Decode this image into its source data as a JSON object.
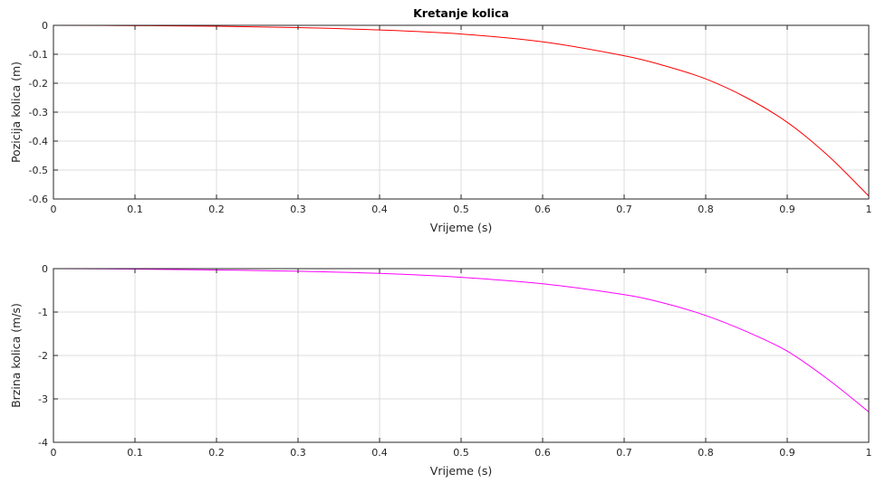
{
  "chart_data": [
    {
      "type": "line",
      "title": "Kretanje kolica",
      "xlabel": "Vrijeme (s)",
      "ylabel": "Pozicija kolica (m)",
      "xlim": [
        0,
        1
      ],
      "ylim": [
        -0.6,
        0
      ],
      "xticks": [
        "0",
        "0.1",
        "0.2",
        "0.3",
        "0.4",
        "0.5",
        "0.6",
        "0.7",
        "0.8",
        "0.9",
        "1"
      ],
      "yticks": [
        "0",
        "-0.1",
        "-0.2",
        "-0.3",
        "-0.4",
        "-0.5",
        "-0.6"
      ],
      "grid": true,
      "series": [
        {
          "color": "#ff0000",
          "x": [
            0,
            0.1,
            0.2,
            0.3,
            0.4,
            0.5,
            0.6,
            0.7,
            0.75,
            0.8,
            0.85,
            0.9,
            0.95,
            1.0
          ],
          "y": [
            0,
            -0.001,
            -0.003,
            -0.008,
            -0.016,
            -0.03,
            -0.057,
            -0.105,
            -0.14,
            -0.185,
            -0.25,
            -0.335,
            -0.45,
            -0.59
          ]
        }
      ]
    },
    {
      "type": "line",
      "title": "",
      "xlabel": "Vrijeme (s)",
      "ylabel": "Brzina kolica (m/s)",
      "xlim": [
        0,
        1
      ],
      "ylim": [
        -4,
        0
      ],
      "xticks": [
        "0",
        "0.1",
        "0.2",
        "0.3",
        "0.4",
        "0.5",
        "0.6",
        "0.7",
        "0.8",
        "0.9",
        "1"
      ],
      "yticks": [
        "0",
        "-1",
        "-2",
        "-3",
        "-4"
      ],
      "grid": true,
      "series": [
        {
          "color": "#ff00ff",
          "x": [
            0,
            0.1,
            0.2,
            0.3,
            0.4,
            0.5,
            0.6,
            0.7,
            0.75,
            0.8,
            0.85,
            0.9,
            0.95,
            1.0
          ],
          "y": [
            0,
            -0.01,
            -0.03,
            -0.06,
            -0.11,
            -0.2,
            -0.35,
            -0.6,
            -0.8,
            -1.08,
            -1.45,
            -1.9,
            -2.55,
            -3.3
          ]
        }
      ]
    }
  ]
}
